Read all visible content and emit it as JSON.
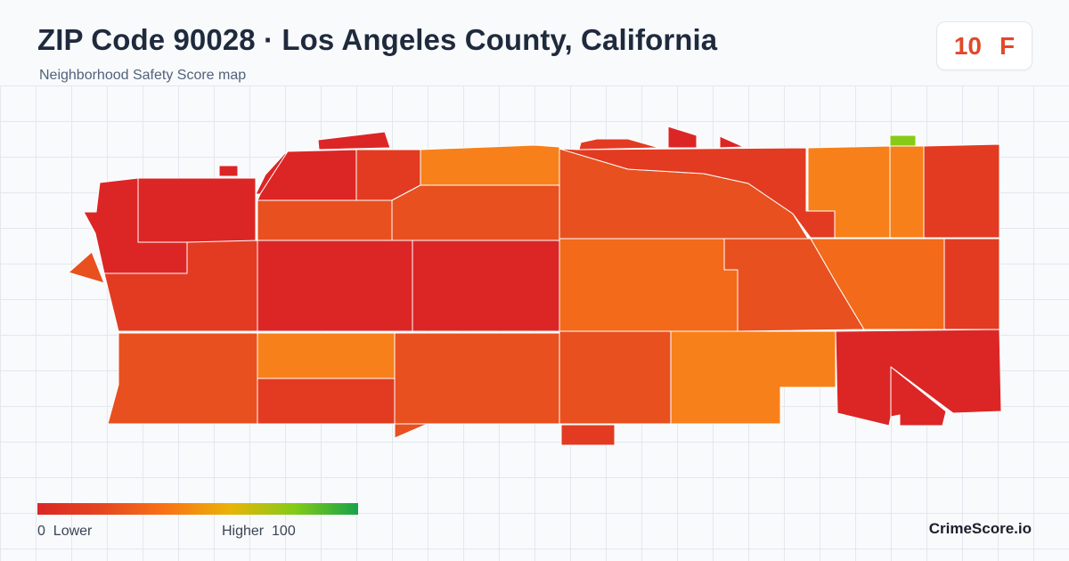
{
  "header": {
    "title": "ZIP Code 90028 · Los Angeles County, California",
    "subtitle": "Neighborhood Safety Score map"
  },
  "score": {
    "value": "10",
    "grade": "F",
    "color": "#e0492a"
  },
  "map": {
    "grid_color": "#e3e8ee",
    "border_color": "#ffffff",
    "color_scale": [
      "#dc2626",
      "#e4471f",
      "#f97316",
      "#eab308",
      "#84cc16",
      "#16a34a"
    ],
    "region_colors": {
      "red": "#dc2626",
      "red_orange": "#e23b22",
      "orange_red": "#e8501f",
      "orange": "#f26a1a",
      "light_orange": "#f7801a",
      "green": "#84cc16"
    }
  },
  "legend": {
    "low_value": "0",
    "low_label": "Lower",
    "high_label": "Higher",
    "high_value": "100"
  },
  "brand": "CrimeScore.io"
}
